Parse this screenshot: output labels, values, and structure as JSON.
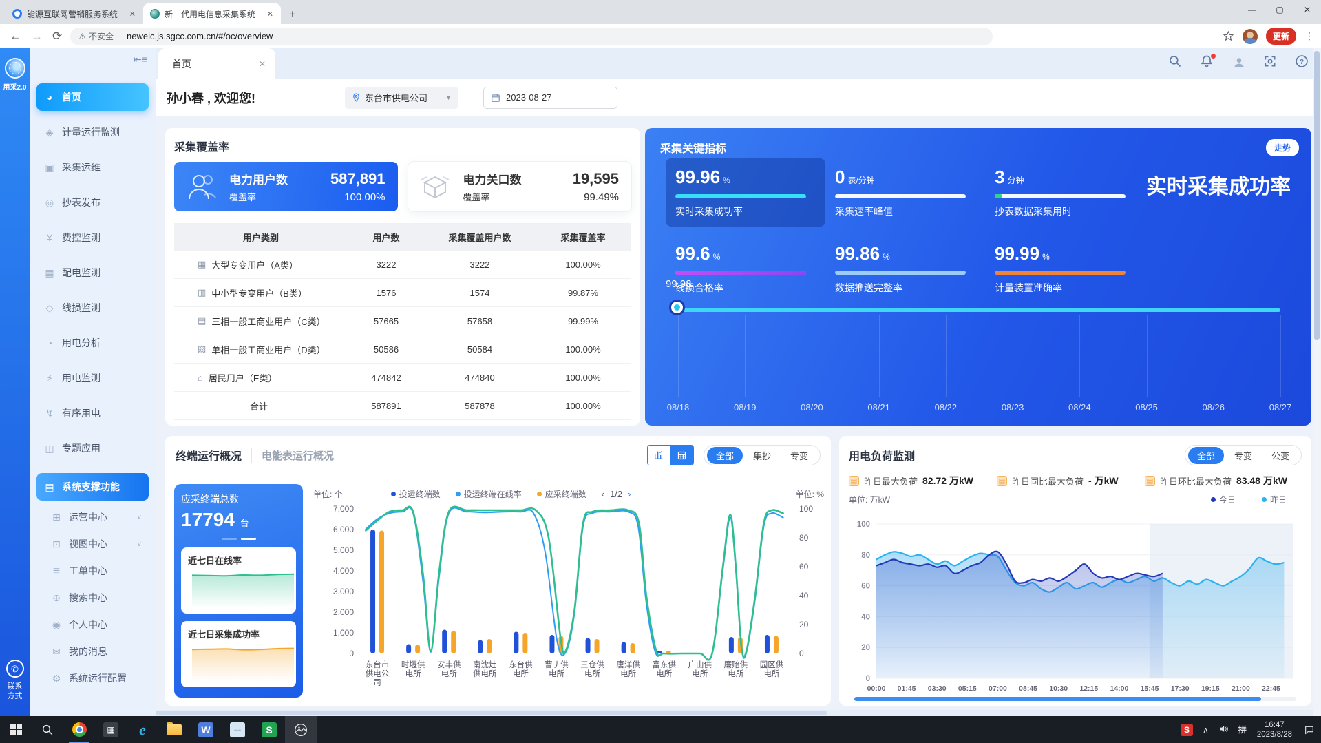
{
  "browser": {
    "tabs": [
      {
        "title": "能源互联网营销服务系统",
        "active": false
      },
      {
        "title": "新一代用电信息采集系统",
        "active": true
      }
    ],
    "security_label": "不安全",
    "url": "neweic.js.sgcc.com.cn/#/oc/overview",
    "update_button": "更新"
  },
  "rail": {
    "brand": "用采2.0",
    "contact_line1": "联系",
    "contact_line2": "方式"
  },
  "sidebar": {
    "items": [
      {
        "key": "home",
        "label": "首页",
        "icon": "home-icon",
        "active": true
      },
      {
        "key": "metering",
        "label": "计量运行监测",
        "icon": "metering-icon"
      },
      {
        "key": "collection-ops",
        "label": "采集运维",
        "icon": "ops-icon"
      },
      {
        "key": "meter-reading",
        "label": "抄表发布",
        "icon": "meter-reading-icon"
      },
      {
        "key": "fee-control",
        "label": "费控监测",
        "icon": "fee-icon"
      },
      {
        "key": "distribution",
        "label": "配电监测",
        "icon": "distribution-icon"
      },
      {
        "key": "line-loss",
        "label": "线损监测",
        "icon": "line-loss-icon"
      },
      {
        "key": "power-analysis",
        "label": "用电分析",
        "icon": "analysis-icon"
      },
      {
        "key": "power-monitor",
        "label": "用电监测",
        "icon": "power-monitor-icon"
      },
      {
        "key": "orderly-power",
        "label": "有序用电",
        "icon": "orderly-icon"
      },
      {
        "key": "topic-apps",
        "label": "专题应用",
        "icon": "topic-icon"
      },
      {
        "key": "system-support",
        "label": "系统支撑功能",
        "icon": "system-icon",
        "section": true
      },
      {
        "key": "operation-center",
        "label": "运营中心",
        "icon": "operation-icon",
        "sub": true,
        "arrow": true
      },
      {
        "key": "view-center",
        "label": "视图中心",
        "icon": "view-icon",
        "sub": true,
        "arrow": true
      },
      {
        "key": "workorder-center",
        "label": "工单中心",
        "icon": "workorder-icon",
        "sub": true
      },
      {
        "key": "search-center",
        "label": "搜索中心",
        "icon": "search-center-icon",
        "sub": true
      },
      {
        "key": "personal-center",
        "label": "个人中心",
        "icon": "personal-icon",
        "sub": true
      },
      {
        "key": "my-messages",
        "label": "我的消息",
        "icon": "message-icon",
        "sub": true
      },
      {
        "key": "system-config",
        "label": "系统运行配置",
        "icon": "config-icon",
        "sub": true
      }
    ]
  },
  "header": {
    "page_tab": "首页",
    "greeting": "孙小春 , 欢迎您!",
    "org": "东台市供电公司",
    "date": "2023-08-27"
  },
  "coverage_panel": {
    "title": "采集覆盖率",
    "cards": [
      {
        "icon": "users-icon",
        "label": "电力用户数",
        "value": "587,891",
        "sub_label": "覆盖率",
        "sub_value": "100.00%"
      },
      {
        "icon": "gateway-box-icon",
        "label": "电力关口数",
        "value": "19,595",
        "sub_label": "覆盖率",
        "sub_value": "99.49%"
      }
    ],
    "table": {
      "headers": [
        "用户类别",
        "用户数",
        "采集覆盖用户数",
        "采集覆盖率"
      ],
      "rows": [
        {
          "icon": "building-large-icon",
          "cells": [
            "大型专变用户（A类）",
            "3222",
            "3222",
            "100.00%"
          ]
        },
        {
          "icon": "building-medium-icon",
          "cells": [
            "中小型专变用户（B类）",
            "1576",
            "1574",
            "99.87%"
          ]
        },
        {
          "icon": "building-threephase-icon",
          "cells": [
            "三相一般工商业用户（C类）",
            "57665",
            "57658",
            "99.99%"
          ]
        },
        {
          "icon": "building-singlephase-icon",
          "cells": [
            "单相一般工商业用户（D类）",
            "50586",
            "50584",
            "100.00%"
          ]
        },
        {
          "icon": "home-small-icon",
          "cells": [
            "居民用户（E类）",
            "474842",
            "474840",
            "100.00%"
          ]
        },
        {
          "icon": "",
          "cells": [
            "合计",
            "587891",
            "587878",
            "100.00%"
          ]
        }
      ]
    }
  },
  "kpi_panel": {
    "title": "采集关键指标",
    "trend_badge": "走势",
    "big_title": "实时采集成功率",
    "metrics": [
      {
        "value": "99.96",
        "unit": "%",
        "label": "实时采集成功率",
        "color": "#35e0f8",
        "fill": 100,
        "highlight": true
      },
      {
        "value": "0",
        "unit": "表/分钟",
        "label": "采集速率峰值",
        "color": "#f5f9ff",
        "fill": 100
      },
      {
        "value": "3",
        "unit": "分钟",
        "label": "抄表数据采集用时",
        "color": "#f5f9ff",
        "fill": 100,
        "lead_color": "#2bd97c",
        "lead": 6
      },
      {
        "value": "99.6",
        "unit": "%",
        "label": "线损合格率",
        "color": "linear-gradient(90deg,#c44df8,#8b46f2)",
        "fill": 100
      },
      {
        "value": "99.86",
        "unit": "%",
        "label": "数据推送完整率",
        "color": "#9bcdf6",
        "fill": 100
      },
      {
        "value": "99.99",
        "unit": "%",
        "label": "计量装置准确率",
        "color": "#ef8438",
        "fill": 100
      }
    ],
    "chart_data": {
      "type": "line",
      "title": "实时采集成功率走势",
      "point_label": "99.98",
      "x": [
        "08/18",
        "08/19",
        "08/20",
        "08/21",
        "08/22",
        "08/23",
        "08/24",
        "08/25",
        "08/26",
        "08/27"
      ],
      "values": [
        99.98,
        99.98,
        99.97,
        99.98,
        99.98,
        99.97,
        99.98,
        99.98,
        99.97,
        99.96
      ],
      "ylim": [
        0,
        100
      ]
    }
  },
  "terminal_panel": {
    "tab_active": "终端运行概况",
    "tab_inactive": "电能表运行概况",
    "segments": [
      "全部",
      "集抄",
      "专变"
    ],
    "segment_active": "全部",
    "summary_card": {
      "title": "应采终端总数",
      "value": "17794",
      "unit": "台"
    },
    "mini_cards": [
      {
        "title": "近七日在线率",
        "color": "#2fbf8f",
        "values": [
          99.2,
          99.4,
          99.1,
          99.5,
          99.2,
          99.6,
          99.4
        ]
      },
      {
        "title": "近七日采集成功率",
        "color": "#f5a62a",
        "values": [
          99.1,
          99.4,
          99.2,
          99.3,
          99.1,
          99.5,
          99.3
        ]
      }
    ],
    "unit_left": "单位: 个",
    "unit_right": "单位: %",
    "pagination": "1/2",
    "legend": [
      {
        "label": "投运终端数",
        "color": "#2151d8"
      },
      {
        "label": "投运终端在线率",
        "color": "#2e9df5"
      },
      {
        "label": "应采终端数",
        "color": "#f5a62a"
      }
    ],
    "chart_data": {
      "type": "bar+line",
      "categories": [
        "东台市供电公司",
        "时堰供电所",
        "安丰供电所",
        "南沈灶供电所",
        "东台供电所",
        "曹丿供电所",
        "三仓供电所",
        "唐洋供电所",
        "富东供电所",
        "广山供电所",
        "廉贻供电所",
        "园区供电所"
      ],
      "ylim_left": [
        0,
        7000
      ],
      "yticks_left": [
        "0",
        "1,000",
        "2,000",
        "3,000",
        "4,000",
        "5,000",
        "6,000",
        "7,000"
      ],
      "ylim_right": [
        0,
        100
      ],
      "yticks_right": [
        "0",
        "20",
        "40",
        "60",
        "80",
        "100"
      ],
      "series": [
        {
          "name": "投运终端数",
          "type": "bar",
          "axis": "left",
          "color": "#2151d8",
          "values": [
            6000,
            450,
            1150,
            650,
            1050,
            900,
            750,
            550,
            30,
            0,
            800,
            900
          ]
        },
        {
          "name": "应采终端数",
          "type": "bar",
          "axis": "left",
          "color": "#f5a62a",
          "values": [
            5950,
            430,
            1100,
            700,
            1000,
            850,
            700,
            500,
            40,
            0,
            780,
            850
          ]
        },
        {
          "name": "投运终端在线率",
          "type": "line",
          "axis": "right",
          "color": "#2e9df5",
          "points": [
            [
              0.015,
              86
            ],
            [
              0.042,
              93
            ],
            [
              0.07,
              97
            ],
            [
              0.1,
              98
            ],
            [
              0.125,
              97
            ],
            [
              0.148,
              50
            ],
            [
              0.166,
              1
            ],
            [
              0.185,
              52
            ],
            [
              0.208,
              97
            ],
            [
              0.25,
              98
            ],
            [
              0.292,
              97.5
            ],
            [
              0.333,
              98
            ],
            [
              0.375,
              98
            ],
            [
              0.405,
              97
            ],
            [
              0.432,
              70
            ],
            [
              0.46,
              8
            ],
            [
              0.48,
              1
            ],
            [
              0.5,
              28
            ],
            [
              0.52,
              88
            ],
            [
              0.542,
              97
            ],
            [
              0.583,
              98
            ],
            [
              0.625,
              98
            ],
            [
              0.648,
              88
            ],
            [
              0.667,
              35
            ],
            [
              0.688,
              1
            ],
            [
              0.708,
              0
            ],
            [
              0.75,
              0
            ],
            [
              0.792,
              0
            ],
            [
              0.82,
              0
            ],
            [
              0.845,
              58
            ],
            [
              0.862,
              94
            ],
            [
              0.875,
              58
            ],
            [
              0.888,
              4
            ],
            [
              0.9,
              1
            ],
            [
              0.92,
              38
            ],
            [
              0.94,
              88
            ],
            [
              0.958,
              97
            ],
            [
              0.985,
              94
            ]
          ]
        },
        {
          "name": "采集成功率",
          "type": "line",
          "axis": "right",
          "color": "#2fbf8f",
          "points": [
            [
              0.015,
              85
            ],
            [
              0.042,
              92
            ],
            [
              0.07,
              98
            ],
            [
              0.1,
              99
            ],
            [
              0.125,
              98
            ],
            [
              0.148,
              55
            ],
            [
              0.166,
              2
            ],
            [
              0.185,
              55
            ],
            [
              0.208,
              98
            ],
            [
              0.25,
              99
            ],
            [
              0.292,
              99
            ],
            [
              0.333,
              99
            ],
            [
              0.375,
              99
            ],
            [
              0.41,
              99
            ],
            [
              0.44,
              80
            ],
            [
              0.468,
              10
            ],
            [
              0.48,
              2
            ],
            [
              0.5,
              30
            ],
            [
              0.52,
              90
            ],
            [
              0.542,
              98
            ],
            [
              0.583,
              99
            ],
            [
              0.625,
              99
            ],
            [
              0.65,
              90
            ],
            [
              0.667,
              40
            ],
            [
              0.69,
              2
            ],
            [
              0.708,
              0
            ],
            [
              0.75,
              0
            ],
            [
              0.792,
              0
            ],
            [
              0.82,
              0
            ],
            [
              0.845,
              60
            ],
            [
              0.862,
              96
            ],
            [
              0.875,
              60
            ],
            [
              0.888,
              5
            ],
            [
              0.9,
              2
            ],
            [
              0.92,
              40
            ],
            [
              0.94,
              90
            ],
            [
              0.958,
              99
            ],
            [
              0.985,
              97
            ]
          ]
        }
      ]
    }
  },
  "load_panel": {
    "title": "用电负荷监测",
    "segments": [
      "全部",
      "专变",
      "公变"
    ],
    "segment_active": "全部",
    "stats": [
      {
        "icon": "max-load-icon",
        "label": "昨日最大负荷",
        "value": "82.72",
        "unit": "万kW"
      },
      {
        "icon": "yoy-load-icon",
        "label": "昨日同比最大负荷",
        "value": "-",
        "unit": "万kW"
      },
      {
        "icon": "mom-load-icon",
        "label": "昨日环比最大负荷",
        "value": "83.48",
        "unit": "万kW"
      }
    ],
    "unit": "单位: 万kW",
    "legend": [
      {
        "label": "今日",
        "color": "#2438b8"
      },
      {
        "label": "昨日",
        "color": "#29b2ef"
      }
    ],
    "chart_data": {
      "type": "line",
      "x_ticks": [
        "00:00",
        "01:45",
        "03:30",
        "05:15",
        "07:00",
        "08:45",
        "10:30",
        "12:15",
        "14:00",
        "15:45",
        "17:30",
        "19:15",
        "21:00",
        "22:45"
      ],
      "ylim": [
        0,
        100
      ],
      "yticks": [
        "100",
        "80",
        "60",
        "40",
        "20",
        "0"
      ],
      "forecast_shade_from": 0.656,
      "series": [
        {
          "name": "昨日",
          "color": "#29b2ef",
          "step_minutes": 30,
          "values": [
            77,
            80,
            82,
            81,
            79,
            80,
            77,
            74,
            76,
            73,
            76,
            79,
            81,
            80,
            79,
            70,
            62,
            60,
            62,
            58,
            56,
            59,
            62,
            58,
            60,
            62,
            59,
            62,
            64,
            62,
            64,
            66,
            63,
            65,
            62,
            60,
            63,
            61,
            64,
            62,
            60,
            63,
            66,
            71,
            78,
            76,
            74,
            75
          ]
        },
        {
          "name": "今日",
          "color": "#2438b8",
          "step_minutes": 30,
          "values": [
            73,
            75,
            77,
            75,
            74,
            73,
            74,
            72,
            73,
            68,
            70,
            73,
            75,
            80,
            82,
            74,
            63,
            62,
            64,
            63,
            65,
            63,
            66,
            70,
            74,
            68,
            65,
            66,
            64,
            66,
            68,
            67,
            66,
            68
          ]
        }
      ]
    }
  },
  "taskbar": {
    "apps": [
      {
        "key": "start",
        "icon": "windows-start-icon"
      },
      {
        "key": "search",
        "icon": "taskbar-search-icon"
      },
      {
        "key": "chrome",
        "icon": "chrome-icon",
        "open": true
      },
      {
        "key": "calculator",
        "icon": "calculator-icon"
      },
      {
        "key": "ie",
        "icon": "internet-explorer-icon",
        "glyph": "e"
      },
      {
        "key": "explorer",
        "icon": "file-explorer-icon"
      },
      {
        "key": "word",
        "icon": "word-icon",
        "glyph": "W"
      },
      {
        "key": "notepad",
        "icon": "notepad-icon"
      },
      {
        "key": "wps",
        "icon": "wps-icon",
        "glyph": "S"
      },
      {
        "key": "photos",
        "icon": "photos-icon",
        "highlight": true
      }
    ],
    "tray_ime": "拼",
    "tray_s_badge": "S",
    "time": "16:47",
    "date": "2023/8/28"
  }
}
